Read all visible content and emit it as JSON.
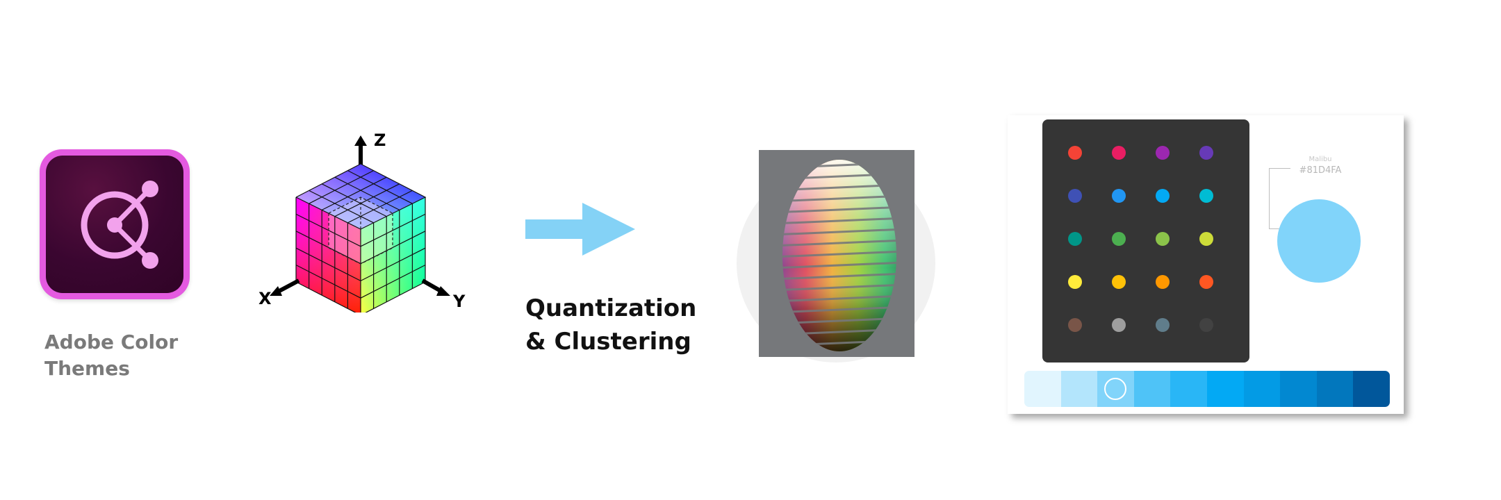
{
  "app": {
    "label_line1": "Adobe Color",
    "label_line2": "Themes",
    "icon": "adobe-color-logo-icon",
    "colors": {
      "frame": "#e45ae0",
      "background": "#3a0630",
      "glyph": "#f2a2ec"
    }
  },
  "rgb_cube": {
    "icon": "rgb-color-cube-icon",
    "axes": {
      "x": "X",
      "y": "Y",
      "z": "Z"
    }
  },
  "process": {
    "arrow_icon": "right-arrow-icon",
    "arrow_color": "#84d2f6",
    "label_line1": "Quantization",
    "label_line2": "& Clustering"
  },
  "cluster_visual": {
    "icon": "color-space-cluster-image"
  },
  "palette": {
    "swatches": [
      "#f44336",
      "#e91e63",
      "#9c27b0",
      "#673ab7",
      "#3f51b5",
      "#2196f3",
      "#03a9f4",
      "#00bcd4",
      "#009688",
      "#4caf50",
      "#8bc34a",
      "#cddc39",
      "#ffeb3b",
      "#ffc107",
      "#ff9800",
      "#ff5722",
      "#795548",
      "#9e9e9e",
      "#607d8b",
      "#424242"
    ],
    "selected": {
      "name": "Malibu",
      "hex": "#81D4FA"
    },
    "shades": [
      "#e1f5fe",
      "#b3e5fc",
      "#81d4fa",
      "#4fc3f7",
      "#29b6f6",
      "#03a9f4",
      "#039be5",
      "#0288d1",
      "#0277bd",
      "#01579b"
    ],
    "selected_shade_index": 2
  }
}
